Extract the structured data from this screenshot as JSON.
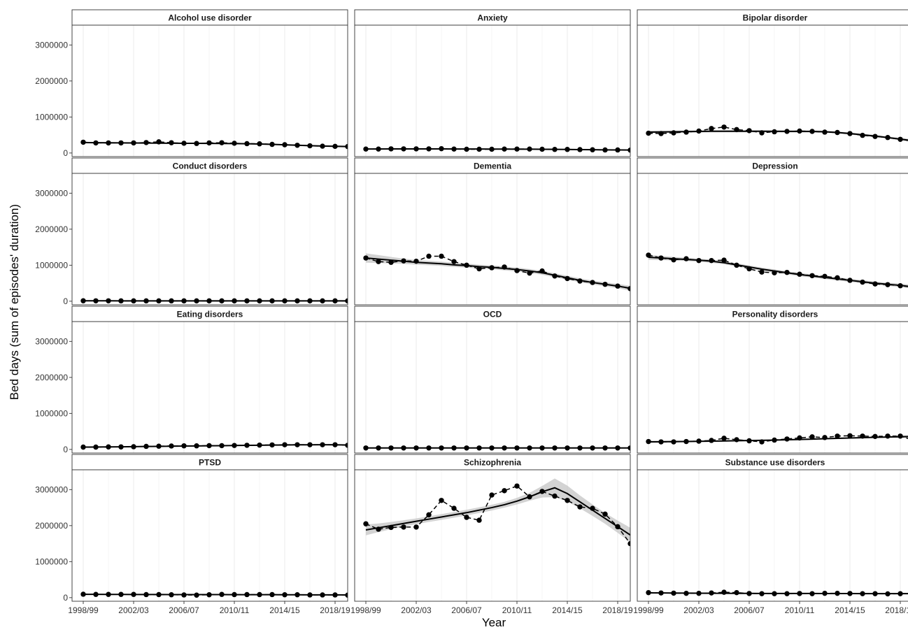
{
  "chart_data": {
    "type": "line",
    "layout": "facet-grid",
    "xlabel": "Year",
    "ylabel": "Bed days (sum of episodes' duration)",
    "x": [
      "1998/99",
      "1999/00",
      "2000/01",
      "2001/02",
      "2002/03",
      "2003/04",
      "2004/05",
      "2005/06",
      "2006/07",
      "2007/08",
      "2008/09",
      "2009/10",
      "2010/11",
      "2011/12",
      "2012/13",
      "2013/14",
      "2014/15",
      "2015/16",
      "2016/17",
      "2017/18",
      "2018/19",
      "2019/20"
    ],
    "x_tick_labels": [
      "1998/99",
      "2002/03",
      "2006/07",
      "2010/11",
      "2014/15",
      "2018/19"
    ],
    "y_ticks": [
      0,
      1000000,
      2000000,
      3000000
    ],
    "y_tick_labels": [
      "0",
      "1000000",
      "2000000",
      "3000000"
    ],
    "ylim": [
      -100000,
      3550000
    ],
    "grid": "vertical major and minor lines",
    "colors": {
      "points": "#000000",
      "trend": "#000000",
      "band": "#c4c4c4",
      "strip": "#ffffff",
      "grid": "#ebebeb"
    },
    "panels": [
      {
        "name": "Alcohol use disorder",
        "values": [
          300000,
          280000,
          280000,
          280000,
          280000,
          290000,
          310000,
          285000,
          270000,
          265000,
          280000,
          285000,
          270000,
          260000,
          255000,
          240000,
          230000,
          215000,
          200000,
          190000,
          185000,
          180000
        ],
        "trend": [
          290000,
          287000,
          284000,
          281000,
          278000,
          276000,
          274000,
          272000,
          270000,
          268000,
          266000,
          264000,
          261000,
          257000,
          250000,
          240000,
          228000,
          215000,
          203000,
          193000,
          186000,
          180000
        ],
        "band": [
          20000,
          20000,
          18000,
          18000,
          18000,
          18000,
          18000,
          18000,
          18000,
          18000,
          18000,
          18000,
          18000,
          18000,
          18000,
          18000,
          18000,
          18000,
          18000,
          20000,
          22000,
          25000
        ]
      },
      {
        "name": "Anxiety",
        "values": [
          110000,
          110000,
          115000,
          115000,
          115000,
          115000,
          120000,
          110000,
          105000,
          105000,
          105000,
          110000,
          110000,
          110000,
          105000,
          100000,
          100000,
          95000,
          90000,
          85000,
          85000,
          80000
        ],
        "trend": [
          112000,
          112000,
          113000,
          113000,
          113000,
          113000,
          113000,
          112000,
          111000,
          110000,
          109000,
          108000,
          107000,
          106000,
          104000,
          101000,
          98000,
          95000,
          92000,
          88000,
          85000,
          82000
        ],
        "band": [
          10000,
          10000,
          10000,
          10000,
          10000,
          10000,
          10000,
          10000,
          10000,
          10000,
          10000,
          10000,
          10000,
          10000,
          10000,
          10000,
          10000,
          10000,
          10000,
          10000,
          12000,
          14000
        ]
      },
      {
        "name": "Bipolar disorder",
        "values": [
          550000,
          540000,
          560000,
          580000,
          610000,
          680000,
          720000,
          650000,
          620000,
          560000,
          590000,
          600000,
          610000,
          600000,
          580000,
          570000,
          540000,
          490000,
          460000,
          430000,
          380000,
          330000
        ],
        "trend": [
          580000,
          585000,
          590000,
          595000,
          600000,
          603000,
          605000,
          605000,
          604000,
          603000,
          602000,
          601000,
          600000,
          598000,
          590000,
          570000,
          540000,
          505000,
          470000,
          430000,
          385000,
          340000
        ],
        "band": [
          40000,
          35000,
          30000,
          30000,
          30000,
          30000,
          30000,
          30000,
          30000,
          30000,
          30000,
          30000,
          30000,
          30000,
          30000,
          30000,
          30000,
          30000,
          30000,
          30000,
          35000,
          40000
        ]
      },
      {
        "name": "Conduct disorders",
        "values": [
          12000,
          11000,
          11000,
          10000,
          10000,
          10000,
          10000,
          10000,
          10000,
          9000,
          9000,
          9000,
          9000,
          9000,
          9000,
          9000,
          9000,
          9000,
          9000,
          9000,
          9000,
          9000
        ],
        "trend": [
          11000,
          11000,
          11000,
          10000,
          10000,
          10000,
          10000,
          10000,
          10000,
          9000,
          9000,
          9000,
          9000,
          9000,
          9000,
          9000,
          9000,
          9000,
          9000,
          9000,
          9000,
          9000
        ],
        "band": [
          3000,
          3000,
          3000,
          3000,
          3000,
          3000,
          3000,
          3000,
          3000,
          3000,
          3000,
          3000,
          3000,
          3000,
          3000,
          3000,
          3000,
          3000,
          3000,
          3000,
          3000,
          3000
        ]
      },
      {
        "name": "Dementia",
        "values": [
          1200000,
          1100000,
          1080000,
          1120000,
          1110000,
          1250000,
          1250000,
          1100000,
          1000000,
          900000,
          930000,
          950000,
          850000,
          780000,
          840000,
          700000,
          630000,
          560000,
          520000,
          470000,
          420000,
          350000
        ],
        "trend": [
          1200000,
          1170000,
          1140000,
          1110000,
          1080000,
          1060000,
          1040000,
          1010000,
          990000,
          960000,
          940000,
          910000,
          880000,
          840000,
          790000,
          720000,
          650000,
          580000,
          520000,
          470000,
          420000,
          360000
        ],
        "band": [
          130000,
          110000,
          90000,
          75000,
          65000,
          60000,
          60000,
          60000,
          55000,
          55000,
          55000,
          55000,
          55000,
          55000,
          55000,
          55000,
          55000,
          55000,
          55000,
          55000,
          60000,
          70000
        ]
      },
      {
        "name": "Depression",
        "values": [
          1280000,
          1200000,
          1150000,
          1180000,
          1130000,
          1130000,
          1140000,
          1000000,
          900000,
          810000,
          790000,
          800000,
          750000,
          710000,
          690000,
          650000,
          580000,
          530000,
          480000,
          460000,
          430000,
          390000
        ],
        "trend": [
          1220000,
          1200000,
          1180000,
          1160000,
          1140000,
          1110000,
          1070000,
          1010000,
          950000,
          890000,
          840000,
          790000,
          740000,
          700000,
          660000,
          620000,
          580000,
          540000,
          500000,
          470000,
          440000,
          400000
        ],
        "band": [
          70000,
          60000,
          50000,
          45000,
          45000,
          45000,
          45000,
          45000,
          45000,
          45000,
          45000,
          45000,
          45000,
          45000,
          45000,
          45000,
          45000,
          45000,
          45000,
          45000,
          50000,
          55000
        ]
      },
      {
        "name": "Eating disorders",
        "values": [
          65000,
          65000,
          70000,
          70000,
          75000,
          85000,
          90000,
          95000,
          100000,
          100000,
          105000,
          105000,
          110000,
          115000,
          120000,
          125000,
          130000,
          130000,
          130000,
          130000,
          130000,
          115000
        ],
        "trend": [
          65000,
          67000,
          70000,
          73000,
          77000,
          81000,
          85000,
          89000,
          93000,
          97000,
          101000,
          105000,
          109000,
          113000,
          117000,
          121000,
          124000,
          127000,
          129000,
          130000,
          128000,
          124000
        ],
        "band": [
          10000,
          10000,
          10000,
          10000,
          10000,
          10000,
          10000,
          10000,
          10000,
          10000,
          10000,
          10000,
          10000,
          10000,
          10000,
          10000,
          10000,
          10000,
          10000,
          10000,
          12000,
          14000
        ]
      },
      {
        "name": "OCD",
        "values": [
          40000,
          40000,
          40000,
          40000,
          40000,
          40000,
          40000,
          40000,
          40000,
          40000,
          40000,
          40000,
          40000,
          40000,
          40000,
          40000,
          40000,
          40000,
          40000,
          40000,
          40000,
          40000
        ],
        "trend": [
          40000,
          40000,
          40000,
          40000,
          40000,
          40000,
          40000,
          40000,
          40000,
          40000,
          40000,
          40000,
          40000,
          40000,
          40000,
          40000,
          40000,
          40000,
          40000,
          40000,
          40000,
          40000
        ],
        "band": [
          6000,
          6000,
          6000,
          6000,
          6000,
          6000,
          6000,
          6000,
          6000,
          6000,
          6000,
          6000,
          6000,
          6000,
          6000,
          6000,
          6000,
          6000,
          6000,
          6000,
          6000,
          6000
        ]
      },
      {
        "name": "Personality disorders",
        "values": [
          220000,
          210000,
          210000,
          220000,
          230000,
          250000,
          310000,
          270000,
          240000,
          210000,
          260000,
          290000,
          320000,
          350000,
          330000,
          370000,
          380000,
          370000,
          360000,
          370000,
          370000,
          260000
        ],
        "trend": [
          210000,
          213000,
          217000,
          221000,
          226000,
          231000,
          236000,
          241000,
          247000,
          253000,
          260000,
          268000,
          277000,
          287000,
          297000,
          307000,
          317000,
          327000,
          336000,
          345000,
          352000,
          358000
        ],
        "band": [
          30000,
          28000,
          25000,
          22000,
          20000,
          20000,
          20000,
          20000,
          20000,
          20000,
          20000,
          20000,
          20000,
          20000,
          20000,
          20000,
          20000,
          20000,
          20000,
          25000,
          35000,
          45000
        ]
      },
      {
        "name": "PTSD",
        "values": [
          95000,
          90000,
          90000,
          90000,
          90000,
          85000,
          85000,
          80000,
          75000,
          70000,
          80000,
          90000,
          85000,
          85000,
          85000,
          85000,
          80000,
          80000,
          75000,
          75000,
          75000,
          70000
        ],
        "trend": [
          92000,
          91000,
          90000,
          89000,
          88000,
          87000,
          86000,
          85000,
          85000,
          84000,
          84000,
          84000,
          83000,
          83000,
          82000,
          81000,
          80000,
          79000,
          78000,
          77000,
          76000,
          75000
        ],
        "band": [
          10000,
          10000,
          10000,
          10000,
          10000,
          10000,
          10000,
          10000,
          10000,
          10000,
          10000,
          10000,
          10000,
          10000,
          10000,
          10000,
          10000,
          10000,
          10000,
          10000,
          12000,
          14000
        ]
      },
      {
        "name": "Schizophrenia",
        "values": [
          2050000,
          1900000,
          1950000,
          1960000,
          1960000,
          2300000,
          2700000,
          2480000,
          2230000,
          2150000,
          2850000,
          2970000,
          3100000,
          2800000,
          2950000,
          2820000,
          2700000,
          2520000,
          2480000,
          2320000,
          1970000,
          1500000
        ],
        "trend": [
          1880000,
          1940000,
          2000000,
          2060000,
          2120000,
          2180000,
          2240000,
          2300000,
          2360000,
          2430000,
          2500000,
          2580000,
          2680000,
          2800000,
          2940000,
          3050000,
          2890000,
          2660000,
          2430000,
          2200000,
          1970000,
          1740000
        ],
        "band": [
          150000,
          120000,
          100000,
          90000,
          80000,
          80000,
          80000,
          80000,
          80000,
          80000,
          80000,
          80000,
          90000,
          110000,
          160000,
          260000,
          220000,
          180000,
          160000,
          150000,
          170000,
          200000
        ]
      },
      {
        "name": "Substance use disorders",
        "values": [
          140000,
          130000,
          125000,
          120000,
          120000,
          130000,
          150000,
          140000,
          115000,
          110000,
          110000,
          110000,
          115000,
          110000,
          120000,
          120000,
          115000,
          110000,
          110000,
          105000,
          110000,
          115000
        ],
        "trend": [
          132000,
          130000,
          128000,
          126000,
          124000,
          122000,
          120000,
          119000,
          118000,
          117000,
          116000,
          115000,
          115000,
          115000,
          114000,
          114000,
          113000,
          112000,
          111000,
          110000,
          110000,
          110000
        ],
        "band": [
          10000,
          10000,
          10000,
          10000,
          10000,
          10000,
          10000,
          10000,
          10000,
          10000,
          10000,
          10000,
          10000,
          10000,
          10000,
          10000,
          10000,
          10000,
          10000,
          10000,
          12000,
          14000
        ]
      }
    ]
  }
}
